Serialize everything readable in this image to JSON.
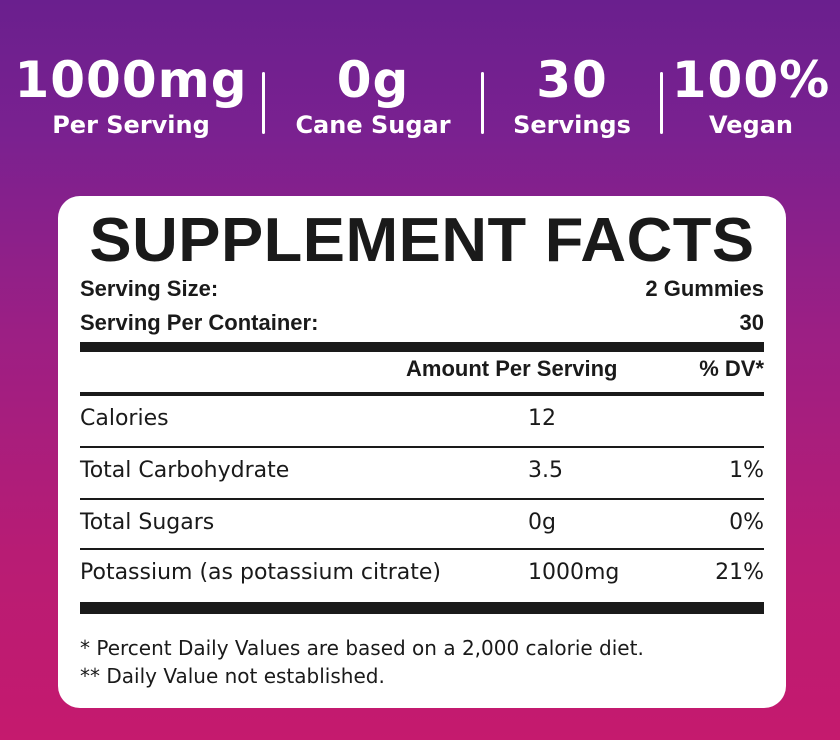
{
  "stats": [
    {
      "value": "1000mg",
      "label": "Per Serving"
    },
    {
      "value": "0g",
      "label": "Cane Sugar"
    },
    {
      "value": "30",
      "label": "Servings"
    },
    {
      "value": "100%",
      "label": "Vegan"
    }
  ],
  "facts": {
    "title": "SUPPLEMENT FACTS",
    "serving_size_label": "Serving Size:",
    "serving_size_value": "2 Gummies",
    "servings_per_container_label": "Serving Per Container:",
    "servings_per_container_value": "30",
    "col_amount": "Amount Per Serving",
    "col_dv": "% DV*",
    "rows": [
      {
        "name": "Calories",
        "amount": "12",
        "dv": ""
      },
      {
        "name": "Total Carbohydrate",
        "amount": "3.5",
        "dv": "1%"
      },
      {
        "name": "Total Sugars",
        "amount": "0g",
        "dv": "0%"
      },
      {
        "name": "Potassium (as potassium citrate)",
        "amount": "1000mg",
        "dv": "21%"
      }
    ],
    "footnote_1": "* Percent Daily Values are based on a 2,000 calorie diet.",
    "footnote_2": "** Daily Value not established."
  },
  "colors": {
    "gradient_top": "#6a1f8e",
    "gradient_bottom": "#c51a6e",
    "panel": "#ffffff",
    "text": "#1a1a1a"
  }
}
